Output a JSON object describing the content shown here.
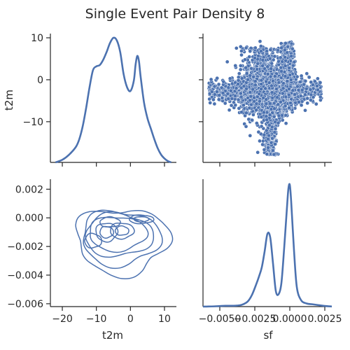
{
  "figure_title": "Single Event Pair Density 8",
  "colors": {
    "series": "#4c72b0",
    "axis": "#262626"
  },
  "chart_data": [
    {
      "panel": "top-left",
      "type": "line",
      "subtype": "kde-diagonal",
      "xlabel": "",
      "ylabel": "t2m",
      "ylim": [
        -19.7,
        11
      ],
      "yticks": [
        -10,
        0,
        10
      ],
      "y_tick_labels": [
        "−10",
        "0",
        "10"
      ],
      "xlim": [
        -23.5,
        13.5
      ],
      "xticks": [
        -20,
        -10,
        0,
        10
      ],
      "x": [
        -22,
        -20,
        -18,
        -16,
        -15,
        -14,
        -13,
        -12,
        -11,
        -10,
        -9,
        -8,
        -7,
        -6,
        -5,
        -4,
        -3,
        -2,
        -1,
        0,
        1,
        1.5,
        2,
        2.5,
        3,
        4,
        5,
        6,
        7,
        8,
        9,
        10,
        11,
        12
      ],
      "density": [
        0.0,
        0.002,
        0.006,
        0.012,
        0.018,
        0.028,
        0.042,
        0.058,
        0.071,
        0.074,
        0.075,
        0.079,
        0.085,
        0.092,
        0.096,
        0.094,
        0.085,
        0.068,
        0.058,
        0.055,
        0.063,
        0.075,
        0.082,
        0.078,
        0.066,
        0.046,
        0.034,
        0.026,
        0.018,
        0.011,
        0.006,
        0.003,
        0.001,
        0.0
      ]
    },
    {
      "panel": "top-right",
      "type": "scatter",
      "xlabel": "",
      "ylabel": "",
      "xlim": [
        -0.0062,
        0.003
      ],
      "ylim": [
        -19.7,
        11
      ],
      "xticks": [
        -0.005,
        -0.0025,
        0.0,
        0.0025
      ],
      "yticks": [
        -10,
        0,
        10
      ],
      "point_count": 2600
    },
    {
      "panel": "bottom-left",
      "type": "contour",
      "subtype": "bivariate-kde",
      "xlabel": "t2m",
      "ylabel": "",
      "xlim": [
        -23.5,
        13.5
      ],
      "ylim": [
        -0.0062,
        0.0027
      ],
      "xticks": [
        -20,
        -10,
        0,
        10
      ],
      "x_tick_labels": [
        "−20",
        "−10",
        "0",
        "10"
      ],
      "yticks": [
        0.002,
        0.0,
        -0.002,
        -0.004,
        -0.006
      ],
      "y_tick_labels": [
        "0.002",
        "0.000",
        "−0.002",
        "−0.004",
        "−0.006"
      ],
      "levels": 10
    },
    {
      "panel": "bottom-right",
      "type": "line",
      "subtype": "kde-diagonal",
      "xlabel": "sf",
      "ylabel": "",
      "xlim": [
        -0.0062,
        0.003
      ],
      "xticks": [
        -0.005,
        -0.0025,
        0.0,
        0.0025
      ],
      "x_tick_labels": [
        "−0.0050",
        "−0.0025",
        "0.0000",
        "0.0025"
      ],
      "x": [
        -0.0062,
        -0.0058,
        -0.0054,
        -0.005,
        -0.0046,
        -0.0042,
        -0.0038,
        -0.0034,
        -0.003,
        -0.0027,
        -0.0024,
        -0.0022,
        -0.002,
        -0.0018,
        -0.0016,
        -0.0014,
        -0.0012,
        -0.001,
        -0.0008,
        -0.0006,
        -0.0004,
        -0.0002,
        -0.0001,
        0.0,
        0.0001,
        0.0003,
        0.0005,
        0.0008,
        0.0012,
        0.0016,
        0.002,
        0.0025,
        0.003
      ],
      "density": [
        0.3,
        0.8,
        2.0,
        4.5,
        6.5,
        6.3,
        7.5,
        15,
        40,
        90,
        170,
        230,
        300,
        420,
        555,
        530,
        330,
        120,
        95,
        180,
        450,
        760,
        900,
        930,
        800,
        430,
        150,
        50,
        24,
        18,
        12,
        5,
        1
      ]
    }
  ]
}
